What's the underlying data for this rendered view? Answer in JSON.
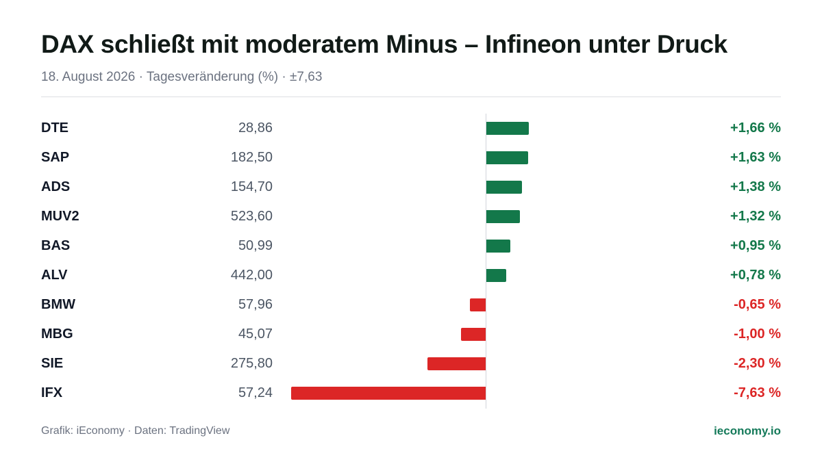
{
  "title": "DAX schließt mit moderatem Minus – Infineon unter Druck",
  "subtitle": "18. August 2026 · Tagesveränderung (%) · ±7,63",
  "footer": {
    "source": "Grafik: iEconomy · Daten: TradingView",
    "brand": "ieconomy.io"
  },
  "colors": {
    "positive": "#13784a",
    "negative": "#dc2626",
    "brand": "#157a5a"
  },
  "chart_data": {
    "type": "bar",
    "orientation": "horizontal",
    "title": "DAX schließt mit moderatem Minus – Infineon unter Druck",
    "subtitle": "18. August 2026 · Tagesveränderung (%) · ±7,63",
    "xlim": [
      -7.63,
      7.63
    ],
    "grid": false,
    "rows": [
      {
        "ticker": "DTE",
        "price": "28,86",
        "change": 1.66,
        "label": "+1,66 %"
      },
      {
        "ticker": "SAP",
        "price": "182,50",
        "change": 1.63,
        "label": "+1,63 %"
      },
      {
        "ticker": "ADS",
        "price": "154,70",
        "change": 1.38,
        "label": "+1,38 %"
      },
      {
        "ticker": "MUV2",
        "price": "523,60",
        "change": 1.32,
        "label": "+1,32 %"
      },
      {
        "ticker": "BAS",
        "price": "50,99",
        "change": 0.95,
        "label": "+0,95 %"
      },
      {
        "ticker": "ALV",
        "price": "442,00",
        "change": 0.78,
        "label": "+0,78 %"
      },
      {
        "ticker": "BMW",
        "price": "57,96",
        "change": -0.65,
        "label": "-0,65 %"
      },
      {
        "ticker": "MBG",
        "price": "45,07",
        "change": -1.0,
        "label": "-1,00 %"
      },
      {
        "ticker": "SIE",
        "price": "275,80",
        "change": -2.3,
        "label": "-2,30 %"
      },
      {
        "ticker": "IFX",
        "price": "57,24",
        "change": -7.63,
        "label": "-7,63 %"
      }
    ]
  }
}
